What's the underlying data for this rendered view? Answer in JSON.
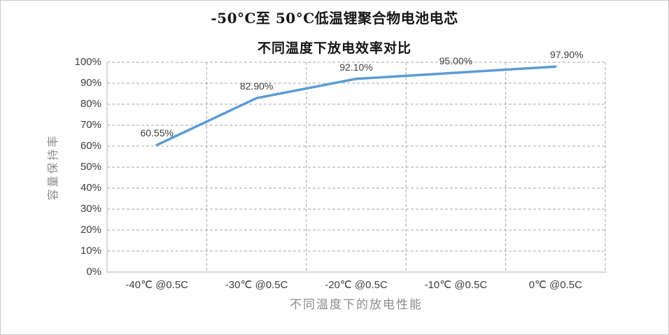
{
  "header": {
    "title_main": "-50°C至 50°C低温锂聚合物电池电芯"
  },
  "chart_data": {
    "type": "line",
    "title": "不同温度下放电效率对比",
    "categories": [
      "-40℃ @0.5C",
      "-30℃ @0.5C",
      "-20℃ @0.5C",
      "-10℃ @0.5C",
      "0℃ @0.5C"
    ],
    "values": [
      60.55,
      82.9,
      92.1,
      95.0,
      97.9
    ],
    "data_labels": [
      "60.55%",
      "82.90%",
      "92.10%",
      "95.00%",
      "97.90%"
    ],
    "xlabel": "不同温度下的放电性能",
    "ylabel": "容量保持率",
    "ylim": [
      0,
      100
    ],
    "ytick_step": 10,
    "ytick_labels": [
      "0%",
      "10%",
      "20%",
      "30%",
      "40%",
      "50%",
      "60%",
      "70%",
      "80%",
      "90%",
      "100%"
    ],
    "grid": "dashed",
    "legend_position": "none",
    "line_color": "#5B9BD5",
    "grid_color": "#a6a6a6",
    "axis_color": "#d9d9d9"
  }
}
